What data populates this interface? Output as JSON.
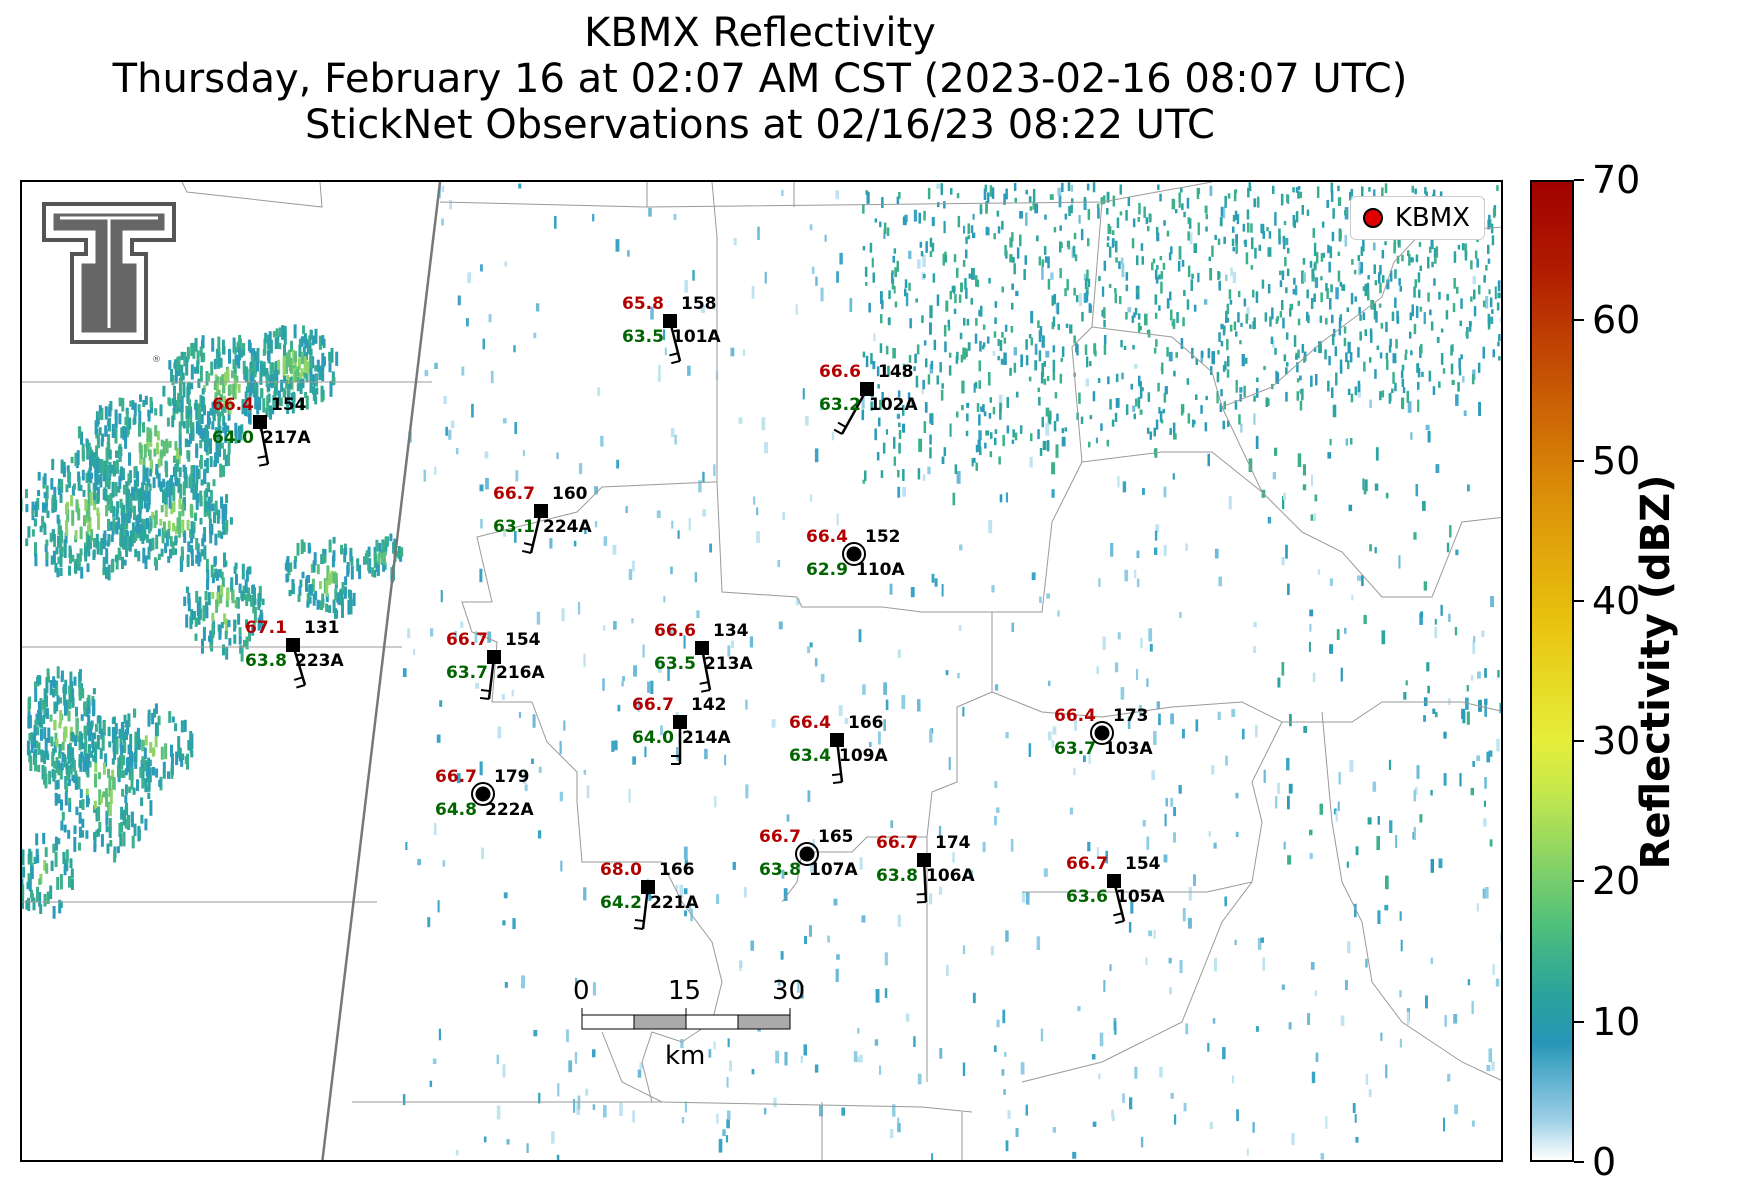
{
  "title": {
    "line1": "KBMX Reflectivity",
    "line2": "Thursday, February 16 at 02:07 AM CST (2023-02-16 08:07 UTC)",
    "line3": "StickNet Observations at 02/16/23 08:22 UTC"
  },
  "legend": {
    "label": "KBMX",
    "marker_color": "#e00000"
  },
  "logo": {
    "type": "Texas Tech double-T",
    "color": "#666666"
  },
  "scale_bar": {
    "labels": [
      "0",
      "15",
      "30"
    ],
    "unit": "km"
  },
  "colorbar": {
    "label": "Reflectivity (dBZ)",
    "ticks": [
      "0",
      "10",
      "20",
      "30",
      "40",
      "50",
      "60",
      "70"
    ],
    "range": [
      0,
      70
    ]
  },
  "stations": [
    {
      "id": "101A",
      "temp": "65.8",
      "dew": "63.5",
      "pres": "158",
      "marker": "square"
    },
    {
      "id": "102A",
      "temp": "66.6",
      "dew": "63.2",
      "pres": "148",
      "marker": "square"
    },
    {
      "id": "217A",
      "temp": "66.4",
      "dew": "64.0",
      "pres": "154",
      "marker": "square"
    },
    {
      "id": "224A",
      "temp": "66.7",
      "dew": "63.1",
      "pres": "160",
      "marker": "square"
    },
    {
      "id": "110A",
      "temp": "66.4",
      "dew": "62.9",
      "pres": "152",
      "marker": "calm"
    },
    {
      "id": "223A",
      "temp": "67.1",
      "dew": "63.8",
      "pres": "131",
      "marker": "square"
    },
    {
      "id": "216A",
      "temp": "66.7",
      "dew": "63.7",
      "pres": "154",
      "marker": "square"
    },
    {
      "id": "213A",
      "temp": "66.6",
      "dew": "63.5",
      "pres": "134",
      "marker": "square"
    },
    {
      "id": "214A",
      "temp": "66.7",
      "dew": "64.0",
      "pres": "142",
      "marker": "square"
    },
    {
      "id": "109A",
      "temp": "66.4",
      "dew": "63.4",
      "pres": "166",
      "marker": "square"
    },
    {
      "id": "103A",
      "temp": "66.4",
      "dew": "63.7",
      "pres": "173",
      "marker": "calm"
    },
    {
      "id": "222A",
      "temp": "66.7",
      "dew": "64.8",
      "pres": "179",
      "marker": "calm"
    },
    {
      "id": "107A",
      "temp": "66.7",
      "dew": "63.8",
      "pres": "165",
      "marker": "calm"
    },
    {
      "id": "106A",
      "temp": "66.7",
      "dew": "63.8",
      "pres": "174",
      "marker": "square"
    },
    {
      "id": "221A",
      "temp": "68.0",
      "dew": "64.2",
      "pres": "166",
      "marker": "square"
    },
    {
      "id": "105A",
      "temp": "66.7",
      "dew": "63.6",
      "pres": "154",
      "marker": "square"
    }
  ]
}
